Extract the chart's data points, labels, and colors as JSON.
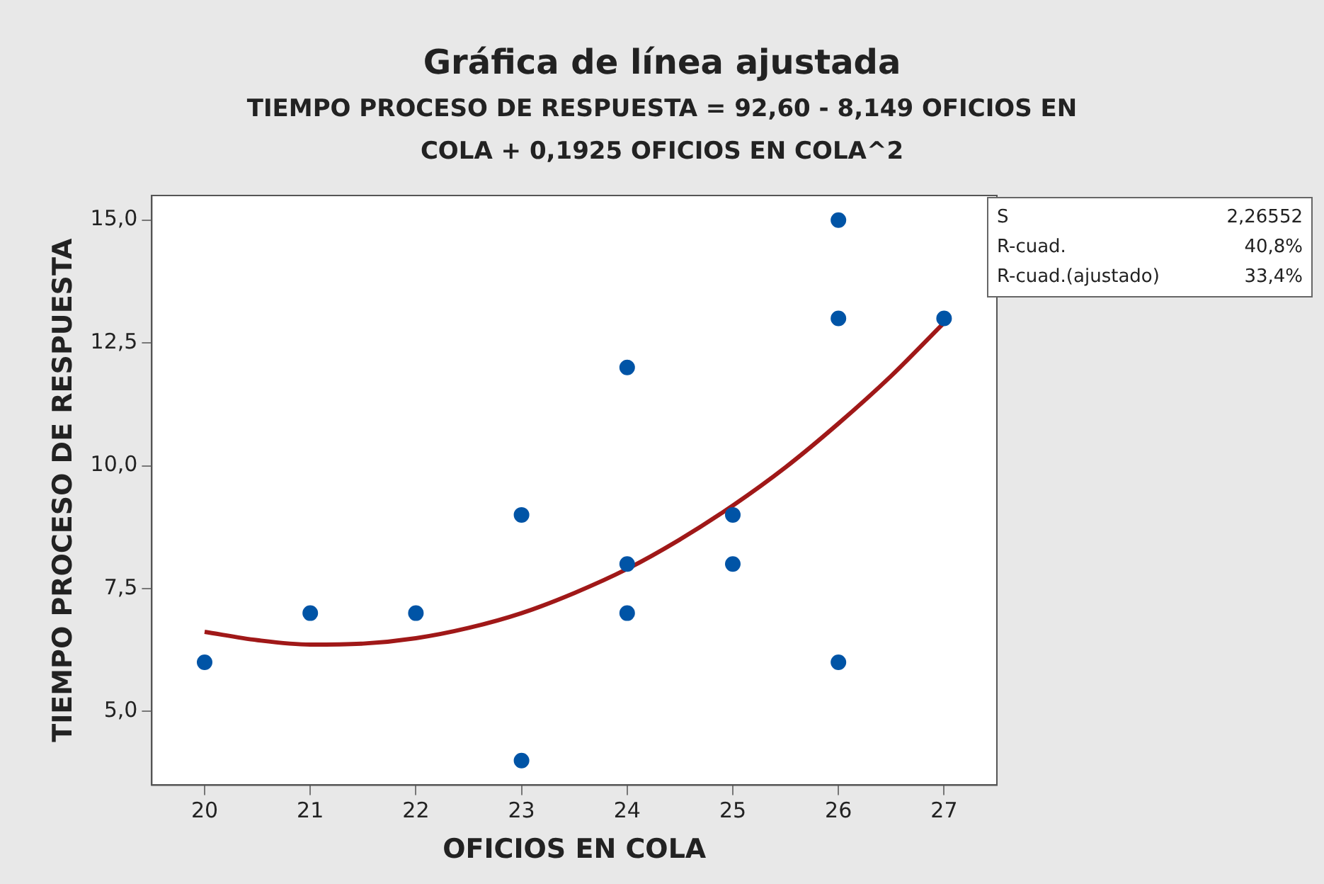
{
  "chart_data": {
    "type": "scatter",
    "title": "Gráfica de línea ajustada",
    "subtitle": "TIEMPO PROCESO DE RESPUESTA = 92,60 - 8,149 OFICIOS EN COLA + 0,1925 OFICIOS EN COLA^2",
    "xlabel": "OFICIOS EN COLA",
    "ylabel": "TIEMPO PROCESO DE RESPUESTA",
    "series": [
      {
        "type": "scatter",
        "marker": "circle",
        "color": "#0054a6",
        "x": [
          20,
          21,
          22,
          23,
          23,
          24,
          24,
          24,
          25,
          25,
          26,
          26,
          26,
          27
        ],
        "values": [
          6,
          7,
          7,
          9,
          4,
          12,
          8,
          7,
          9,
          8,
          15,
          13,
          6,
          13
        ]
      },
      {
        "type": "line",
        "color": "#a01818",
        "x": [
          20,
          20.5,
          21,
          21.5,
          22,
          22.5,
          23,
          23.5,
          24,
          24.5,
          25,
          25.5,
          26,
          26.5,
          27
        ],
        "values": [
          6.62,
          6.45,
          6.36,
          6.38,
          6.49,
          6.7,
          7.0,
          7.41,
          7.9,
          8.5,
          9.19,
          9.97,
          10.86,
          11.83,
          12.91
        ]
      }
    ],
    "xlim": [
      19.5,
      27.5
    ],
    "xticks": [
      20,
      21,
      22,
      23,
      24,
      25,
      26,
      27
    ],
    "ylim": [
      3.5,
      15.5
    ],
    "yticks": [
      {
        "value": 5,
        "label": "5,0"
      },
      {
        "value": 7.5,
        "label": "7,5"
      },
      {
        "value": 10,
        "label": "10,0"
      },
      {
        "value": 12.5,
        "label": "12,5"
      },
      {
        "value": 15,
        "label": "15,0"
      }
    ],
    "grid": false,
    "legend": false,
    "line_style": "solid",
    "annotations": [
      "S",
      "2,26552",
      "R-cuad.",
      "40,8%",
      "R-cuad.(ajustado)",
      "33,4%"
    ]
  }
}
